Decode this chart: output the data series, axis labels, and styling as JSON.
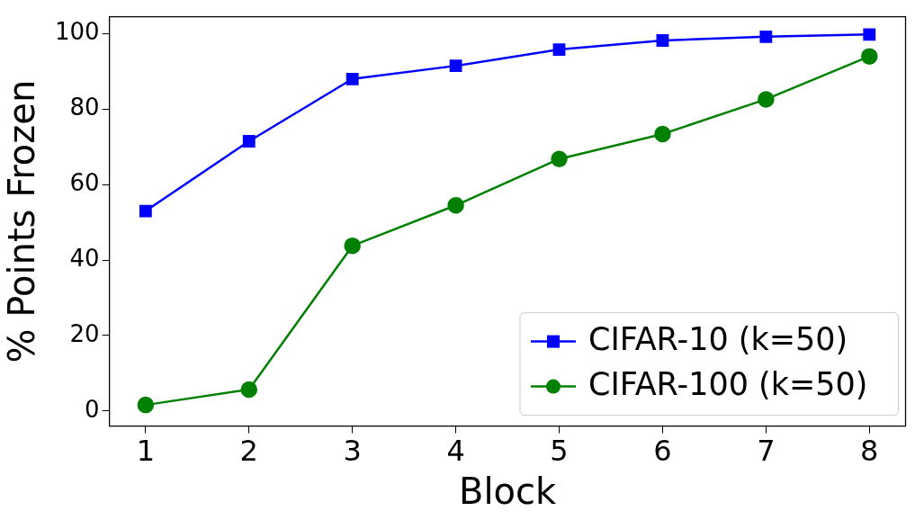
{
  "chart_data": {
    "type": "line",
    "xlabel": "Block",
    "ylabel": "% Points Frozen",
    "x": [
      1,
      2,
      3,
      4,
      5,
      6,
      7,
      8
    ],
    "series": [
      {
        "name": "CIFAR-10 (k=50)",
        "color": "#0000ff",
        "marker": "square",
        "values": [
          53,
          71.5,
          88,
          91.5,
          95.8,
          98.2,
          99.2,
          99.8
        ]
      },
      {
        "name": "CIFAR-100 (k=50)",
        "color": "#008000",
        "marker": "circle",
        "values": [
          1.6,
          5.7,
          43.8,
          54.5,
          66.8,
          73.4,
          82.6,
          94
        ]
      }
    ],
    "xlim": [
      0.65,
      8.35
    ],
    "xticks": [
      1,
      2,
      3,
      4,
      5,
      6,
      7,
      8
    ],
    "ylim": [
      -4,
      104.5
    ],
    "yticks": [
      0,
      20,
      40,
      60,
      80,
      100
    ],
    "grid": false,
    "legend": "bottom right",
    "line_style": "solid"
  }
}
